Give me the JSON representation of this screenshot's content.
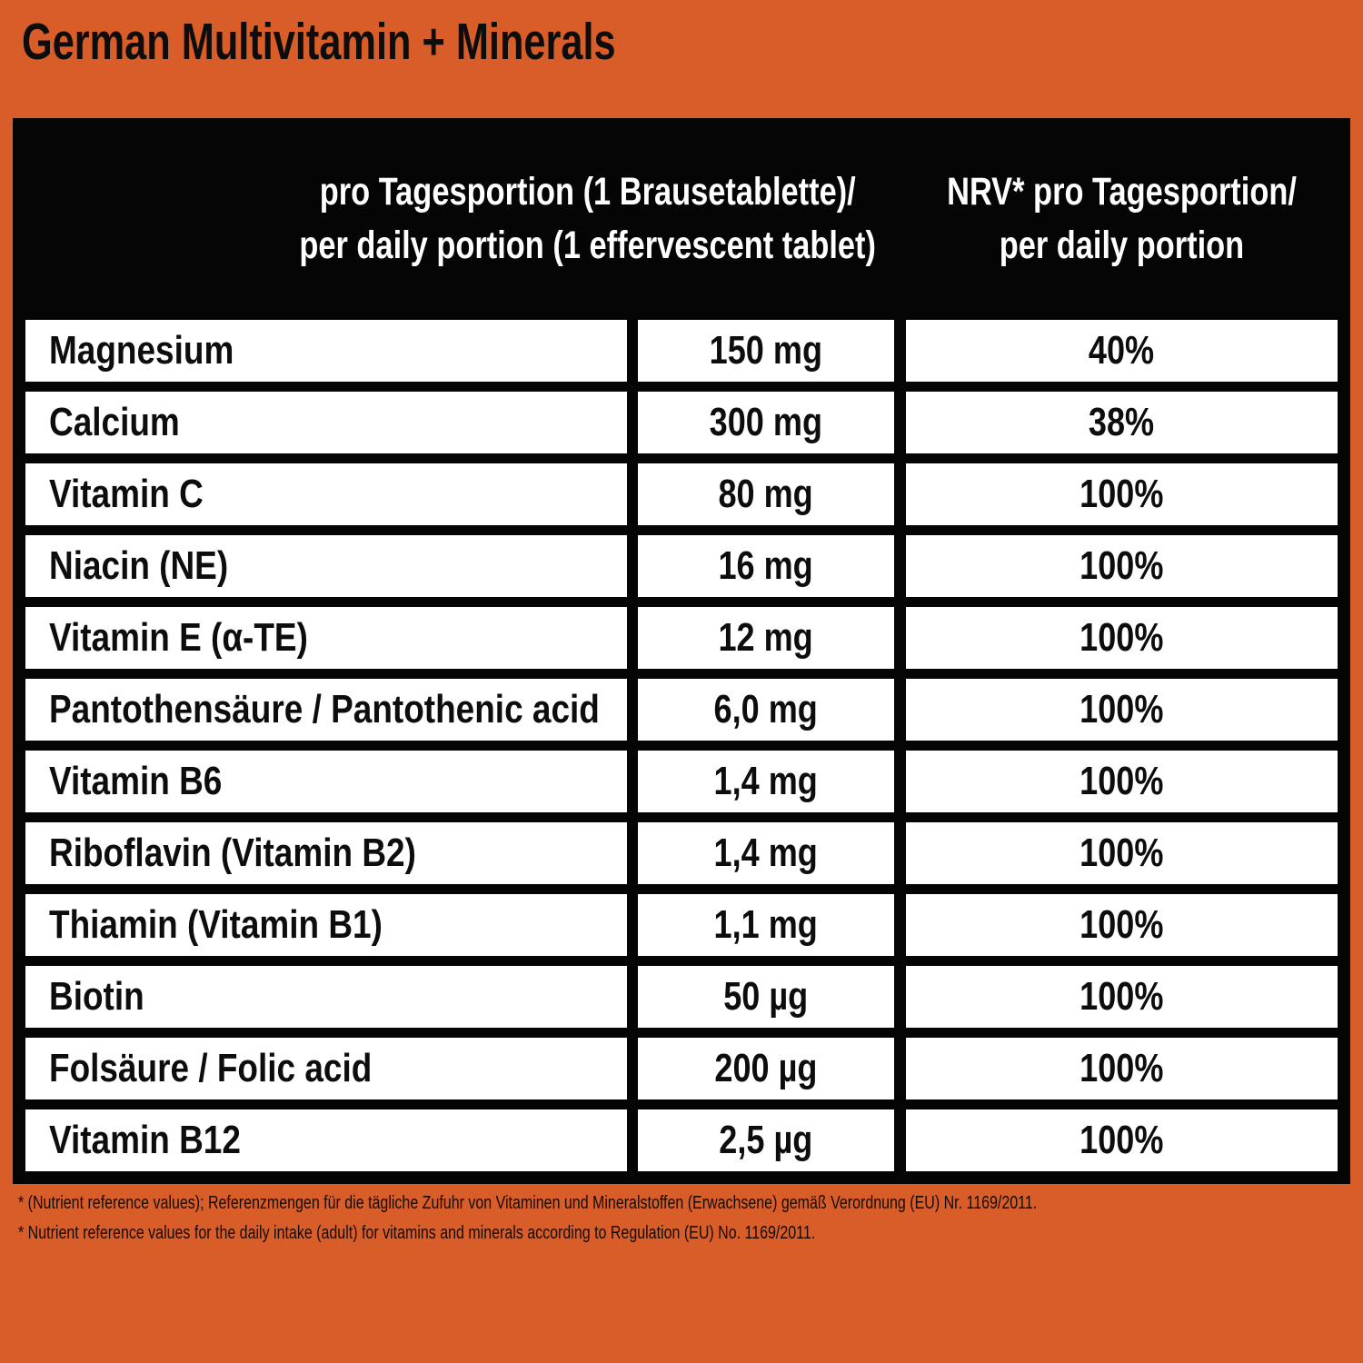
{
  "page": {
    "title": "German Multivitamin + Minerals"
  },
  "colors": {
    "background_orange": "#D85D29",
    "table_black": "#050505",
    "cell_white": "#FFFFFF",
    "header_text_white": "#FFFFFF",
    "body_text_black": "#0D0D0D"
  },
  "table": {
    "header": {
      "amount_col_line1": "pro Tagesportion (1 Brausetablette)/",
      "amount_col_line2": "per daily portion (1 effervescent tablet)",
      "nrv_col_line1": "NRV* pro Tagesportion/",
      "nrv_col_line2": "per daily portion"
    },
    "rows": [
      {
        "nutrient": "Magnesium",
        "amount": "150 mg",
        "nrv": "40%"
      },
      {
        "nutrient": "Calcium",
        "amount": "300 mg",
        "nrv": "38%"
      },
      {
        "nutrient": "Vitamin C",
        "amount": "80 mg",
        "nrv": "100%"
      },
      {
        "nutrient": "Niacin (NE)",
        "amount": "16 mg",
        "nrv": "100%"
      },
      {
        "nutrient": "Vitamin E (α-TE)",
        "amount": "12 mg",
        "nrv": "100%"
      },
      {
        "nutrient": "Pantothensäure / Pantothenic acid",
        "amount": "6,0 mg",
        "nrv": "100%"
      },
      {
        "nutrient": "Vitamin B6",
        "amount": "1,4 mg",
        "nrv": "100%"
      },
      {
        "nutrient": "Riboflavin (Vitamin B2)",
        "amount": "1,4 mg",
        "nrv": "100%"
      },
      {
        "nutrient": "Thiamin (Vitamin B1)",
        "amount": "1,1 mg",
        "nrv": "100%"
      },
      {
        "nutrient": "Biotin",
        "amount": "50 µg",
        "nrv": "100%"
      },
      {
        "nutrient": "Folsäure / Folic acid",
        "amount": "200 µg",
        "nrv": "100%"
      },
      {
        "nutrient": "Vitamin B12",
        "amount": "2,5 µg",
        "nrv": "100%"
      }
    ]
  },
  "footnotes": {
    "line1": "* (Nutrient reference values); Referenzmengen für die tägliche Zufuhr von Vitaminen und Mineralstoffen (Erwachsene) gemäß Verordnung (EU) Nr. 1169/2011.",
    "line2": "* Nutrient reference values for the daily intake (adult) for vitamins and minerals according to Regulation (EU) No. 1169/2011."
  }
}
